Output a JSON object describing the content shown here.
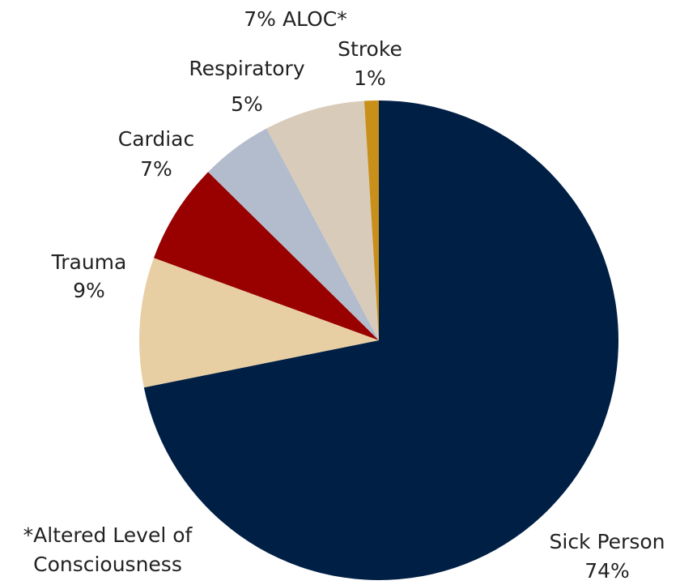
{
  "chart_data": {
    "type": "pie",
    "categories": [
      "Sick Person",
      "Trauma",
      "Cardiac",
      "Respiratory",
      "ALOC*",
      "Stroke"
    ],
    "values": [
      74,
      9,
      7,
      5,
      7,
      1
    ],
    "value_labels": [
      "74%",
      "9%",
      "7%",
      "5%",
      "7%",
      "1%"
    ],
    "colors": [
      "#001f45",
      "#e8cfa3",
      "#990000",
      "#b3bccd",
      "#d9cbb9",
      "#c8901a"
    ],
    "annotation": [
      "*Altered Level of",
      "Consciousness"
    ]
  }
}
